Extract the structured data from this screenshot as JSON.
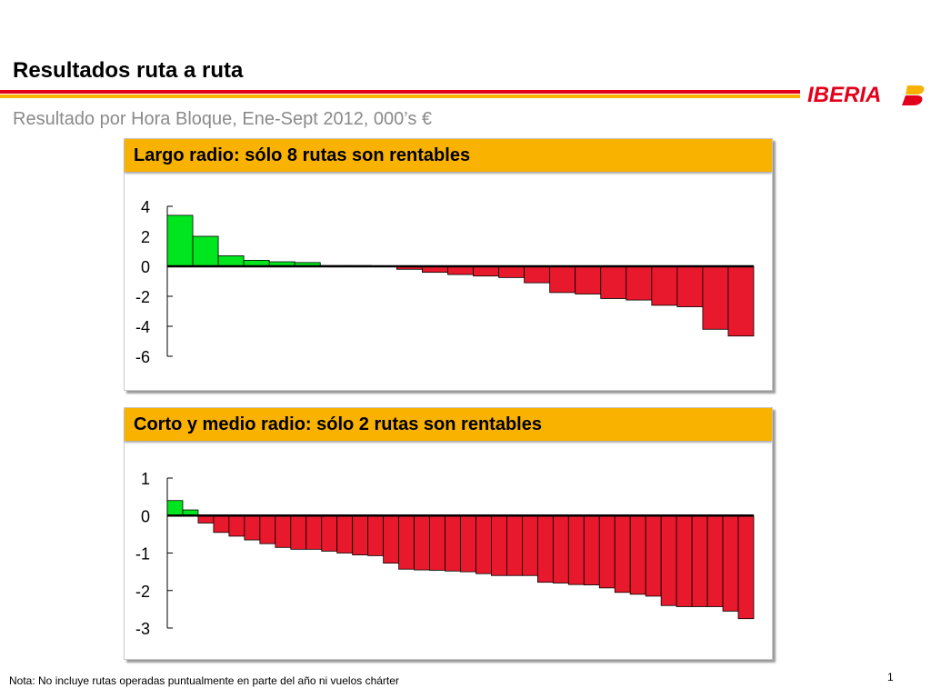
{
  "header": {
    "title": "Resultados ruta a ruta",
    "subtitle": "Resultado por Hora Bloque, Ene-Sept 2012, 000’s €",
    "logo_text": "IBERIA"
  },
  "colors": {
    "positive": "#00e61e",
    "negative": "#e8192c",
    "accent_red": "#e3001b",
    "accent_yellow": "#f9b200"
  },
  "chart_data": [
    {
      "type": "bar",
      "title": "Largo radio: sólo 8 rutas son rentables",
      "ylim": [
        -6,
        4
      ],
      "yticks": [
        "4",
        "2",
        "0",
        "-2",
        "-4",
        "-6"
      ],
      "ytick_values": [
        4,
        2,
        0,
        -2,
        -4,
        -6
      ],
      "values": [
        3.4,
        2.0,
        0.7,
        0.4,
        0.3,
        0.25,
        0.05,
        0.05,
        0,
        -0.2,
        -0.4,
        -0.55,
        -0.65,
        -0.75,
        -1.1,
        -1.75,
        -1.85,
        -2.15,
        -2.25,
        -2.6,
        -2.7,
        -4.2,
        -4.65
      ]
    },
    {
      "type": "bar",
      "title": "Corto y medio radio: sólo 2 rutas son rentables",
      "ylim": [
        -3,
        1
      ],
      "yticks": [
        "1",
        "0",
        "-1",
        "-2",
        "-3"
      ],
      "ytick_values": [
        1,
        0,
        -1,
        -2,
        -3
      ],
      "values": [
        0.4,
        0.15,
        -0.2,
        -0.45,
        -0.55,
        -0.65,
        -0.75,
        -0.85,
        -0.9,
        -0.9,
        -0.95,
        -1.0,
        -1.05,
        -1.07,
        -1.27,
        -1.43,
        -1.45,
        -1.46,
        -1.48,
        -1.5,
        -1.55,
        -1.6,
        -1.6,
        -1.6,
        -1.78,
        -1.8,
        -1.84,
        -1.85,
        -1.93,
        -2.05,
        -2.1,
        -2.15,
        -2.4,
        -2.43,
        -2.43,
        -2.43,
        -2.55,
        -2.75
      ]
    }
  ],
  "footer": {
    "note": "Nota: No incluye rutas operadas puntualmente en parte del año ni vuelos chárter",
    "page_number": "1"
  }
}
